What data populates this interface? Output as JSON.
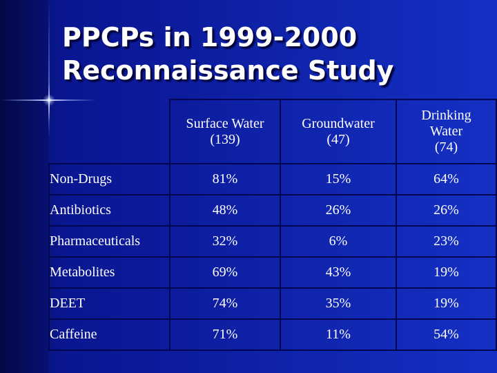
{
  "slide": {
    "title_line1": "PPCPs in 1999-2000",
    "title_line2": "Reconnaissance Study"
  },
  "table": {
    "headers": [
      {
        "line1": "Surface Water",
        "line2": "(139)",
        "line3": ""
      },
      {
        "line1": "Groundwater",
        "line2": "(47)",
        "line3": ""
      },
      {
        "line1": "Drinking",
        "line2": "Water",
        "line3": "(74)"
      }
    ],
    "rows": [
      {
        "label": "Non-Drugs",
        "values": [
          "81%",
          "15%",
          "64%"
        ]
      },
      {
        "label": "Antibiotics",
        "values": [
          "48%",
          "26%",
          "26%"
        ]
      },
      {
        "label": "Pharmaceuticals",
        "values": [
          "32%",
          "6%",
          "23%"
        ]
      },
      {
        "label": "Metabolites",
        "values": [
          "69%",
          "43%",
          "19%"
        ]
      },
      {
        "label": "DEET",
        "values": [
          "74%",
          "35%",
          "19%"
        ]
      },
      {
        "label": "Caffeine",
        "values": [
          "71%",
          "11%",
          "54%"
        ]
      }
    ]
  },
  "colors": {
    "background": "#0d1c9e",
    "text": "#ffffff",
    "grid": "#020650"
  }
}
